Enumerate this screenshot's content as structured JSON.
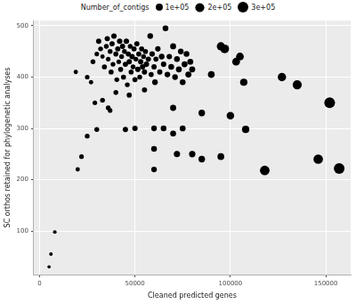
{
  "chart_data": {
    "type": "bubble",
    "x_label": "Cleaned predicted genes",
    "y_label": "SC orthos retained for phylogenetic analyses",
    "size_title": "Number_of_contigs",
    "size_ticks": [
      {
        "value": 100000,
        "label": "1e+05"
      },
      {
        "value": 200000,
        "label": "2e+05"
      },
      {
        "value": 300000,
        "label": "3e+05"
      }
    ],
    "legend": "top",
    "color": "#000000",
    "grid": true,
    "xlim": [
      -3000,
      163000
    ],
    "xticks": [
      0,
      50000,
      100000,
      150000
    ],
    "ylim": [
      15,
      510
    ],
    "yticks": [
      100,
      200,
      300,
      400,
      500
    ],
    "x": [
      28000,
      30000,
      31000,
      32000,
      33000,
      34000,
      35000,
      35500,
      36000,
      37000,
      37500,
      38000,
      38500,
      39000,
      40000,
      40500,
      41000,
      41500,
      42000,
      42500,
      43000,
      43500,
      44000,
      44500,
      45000,
      45500,
      46000,
      46500,
      47000,
      47500,
      48000,
      48500,
      49000,
      49500,
      50000,
      50500,
      51000,
      51500,
      52000,
      52500,
      53000,
      53500,
      54000,
      54500,
      55000,
      55500,
      56000,
      57000,
      58000,
      58500,
      59000,
      60000,
      60500,
      61000,
      62000,
      63000,
      64000,
      65000,
      66000,
      67000,
      68000,
      69000,
      70000,
      71000,
      72000,
      73000,
      74000,
      75000,
      76000,
      77000,
      78000,
      79000,
      80000,
      36000,
      37000,
      33000,
      29000,
      27000,
      25000,
      40000,
      47000,
      55000,
      5000,
      6000,
      8000,
      20000,
      22000,
      25000,
      30000,
      19000,
      45000,
      50000,
      60000,
      60000,
      65000,
      70000,
      72000,
      85000,
      80000,
      95000,
      60000,
      75000,
      85000,
      70000,
      95000,
      97000,
      105000,
      107000,
      100000,
      108000,
      118000,
      127000,
      135000,
      146000,
      152000,
      157000,
      103000,
      90000
    ],
    "values": [
      430,
      445,
      470,
      455,
      440,
      420,
      460,
      475,
      435,
      450,
      410,
      465,
      425,
      480,
      445,
      395,
      455,
      430,
      470,
      415,
      440,
      460,
      400,
      450,
      425,
      470,
      385,
      445,
      430,
      460,
      410,
      440,
      420,
      455,
      395,
      435,
      465,
      415,
      445,
      400,
      430,
      455,
      420,
      440,
      410,
      450,
      425,
      435,
      480,
      405,
      445,
      420,
      390,
      435,
      455,
      410,
      440,
      425,
      495,
      405,
      440,
      420,
      460,
      400,
      435,
      415,
      450,
      390,
      425,
      445,
      405,
      430,
      415,
      340,
      335,
      355,
      350,
      390,
      400,
      370,
      365,
      375,
      30,
      55,
      98,
      220,
      245,
      285,
      298,
      410,
      298,
      300,
      220,
      300,
      300,
      290,
      250,
      240,
      250,
      245,
      260,
      300,
      330,
      340,
      460,
      455,
      440,
      390,
      325,
      298,
      218,
      400,
      385,
      240,
      350,
      222,
      430,
      405
    ],
    "sizes": [
      30000,
      25000,
      40000,
      30000,
      20000,
      35000,
      30000,
      40000,
      25000,
      30000,
      35000,
      40000,
      30000,
      45000,
      35000,
      30000,
      40000,
      25000,
      45000,
      35000,
      30000,
      40000,
      35000,
      30000,
      40000,
      45000,
      30000,
      35000,
      40000,
      30000,
      35000,
      45000,
      30000,
      40000,
      35000,
      30000,
      40000,
      45000,
      35000,
      30000,
      40000,
      35000,
      45000,
      30000,
      40000,
      35000,
      45000,
      40000,
      50000,
      35000,
      45000,
      40000,
      50000,
      35000,
      45000,
      40000,
      50000,
      45000,
      55000,
      50000,
      45000,
      55000,
      60000,
      50000,
      55000,
      60000,
      50000,
      55000,
      60000,
      55000,
      65000,
      60000,
      65000,
      30000,
      25000,
      30000,
      25000,
      20000,
      25000,
      30000,
      35000,
      40000,
      5000,
      8000,
      10000,
      20000,
      25000,
      30000,
      30000,
      20000,
      40000,
      45000,
      50000,
      50000,
      55000,
      60000,
      70000,
      80000,
      75000,
      90000,
      55000,
      60000,
      80000,
      65000,
      150000,
      180000,
      130000,
      110000,
      120000,
      110000,
      230000,
      160000,
      200000,
      220000,
      300000,
      300000,
      130000,
      90000
    ]
  }
}
